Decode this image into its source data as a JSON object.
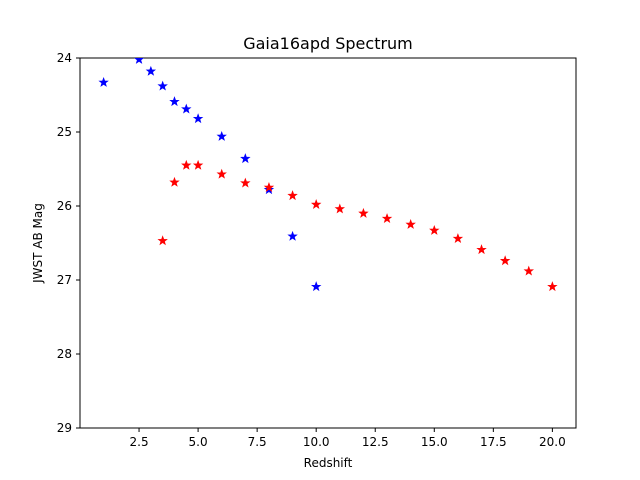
{
  "chart_data": {
    "type": "scatter",
    "title": "Gaia16apd Spectrum",
    "xlabel": "Redshift",
    "ylabel": "JWST AB Mag",
    "xlim": [
      0.0,
      21.0
    ],
    "ylim": [
      29,
      24
    ],
    "y_inverted": true,
    "grid": false,
    "legend": "none",
    "marker": "star",
    "x_ticks": [
      2.5,
      5.0,
      7.5,
      10.0,
      12.5,
      15.0,
      17.5,
      20.0
    ],
    "x_tick_labels": [
      "2.5",
      "5.0",
      "7.5",
      "10.0",
      "12.5",
      "15.0",
      "17.5",
      "20.0"
    ],
    "y_ticks": [
      24,
      25,
      26,
      27,
      28,
      29
    ],
    "y_tick_labels": [
      "24",
      "25",
      "26",
      "27",
      "28",
      "29"
    ],
    "series": [
      {
        "color": "#0000ff",
        "points": [
          {
            "x": 1.0,
            "y": 24.33
          },
          {
            "x": 2.5,
            "y": 24.02
          },
          {
            "x": 3.0,
            "y": 24.18
          },
          {
            "x": 3.5,
            "y": 24.38
          },
          {
            "x": 4.0,
            "y": 24.59
          },
          {
            "x": 4.5,
            "y": 24.69
          },
          {
            "x": 5.0,
            "y": 24.82
          },
          {
            "x": 6.0,
            "y": 25.06
          },
          {
            "x": 7.0,
            "y": 25.36
          },
          {
            "x": 8.0,
            "y": 25.78
          },
          {
            "x": 9.0,
            "y": 26.41
          },
          {
            "x": 10.0,
            "y": 27.09
          }
        ]
      },
      {
        "color": "#ff0000",
        "points": [
          {
            "x": 3.5,
            "y": 26.47
          },
          {
            "x": 4.0,
            "y": 25.68
          },
          {
            "x": 4.5,
            "y": 25.45
          },
          {
            "x": 5.0,
            "y": 25.45
          },
          {
            "x": 6.0,
            "y": 25.57
          },
          {
            "x": 7.0,
            "y": 25.69
          },
          {
            "x": 8.0,
            "y": 25.75
          },
          {
            "x": 9.0,
            "y": 25.86
          },
          {
            "x": 10.0,
            "y": 25.98
          },
          {
            "x": 11.0,
            "y": 26.04
          },
          {
            "x": 12.0,
            "y": 26.1
          },
          {
            "x": 13.0,
            "y": 26.17
          },
          {
            "x": 14.0,
            "y": 26.25
          },
          {
            "x": 15.0,
            "y": 26.33
          },
          {
            "x": 16.0,
            "y": 26.44
          },
          {
            "x": 17.0,
            "y": 26.59
          },
          {
            "x": 18.0,
            "y": 26.74
          },
          {
            "x": 19.0,
            "y": 26.88
          },
          {
            "x": 20.0,
            "y": 27.09
          }
        ]
      }
    ]
  }
}
